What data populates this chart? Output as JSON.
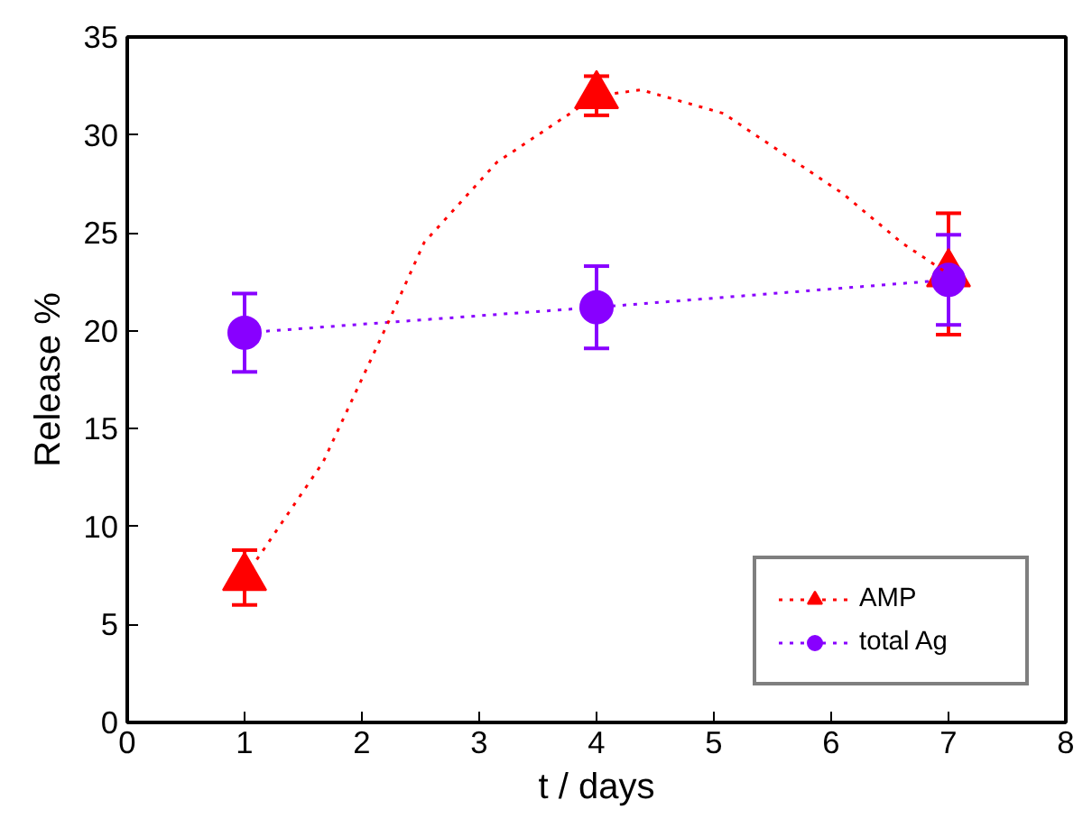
{
  "chart_data": {
    "type": "scatter",
    "xlabel": "t / days",
    "ylabel": "Release %",
    "xlim": [
      0,
      8
    ],
    "xticks": [
      0,
      1,
      2,
      3,
      4,
      5,
      6,
      7,
      8
    ],
    "ylim": [
      0,
      35
    ],
    "yticks": [
      0,
      5,
      10,
      15,
      20,
      25,
      30,
      35
    ],
    "grid": false,
    "legend": "bottom right",
    "series": [
      {
        "name": "AMP",
        "marker": "triangle",
        "color": "#ff0000",
        "x": [
          1,
          4,
          7
        ],
        "values": [
          7.4,
          32.0,
          22.9
        ],
        "errors": [
          1.4,
          1.0,
          3.1
        ]
      },
      {
        "name": "total Ag",
        "type": "line",
        "marker": "circle",
        "line_style": "dotted",
        "color": "#8800ff",
        "x": [
          1,
          4,
          7
        ],
        "values": [
          19.9,
          21.2,
          22.6
        ],
        "errors": [
          2.0,
          2.1,
          2.3
        ]
      },
      {
        "type": "line",
        "marker": "none",
        "line_style": "dotted",
        "color": "#ff0000",
        "x": [
          1,
          1.67,
          2.23,
          2.53,
          3.15,
          4,
          4.38,
          5.08,
          6.1,
          6.6,
          7
        ],
        "values": [
          7.4,
          13.3,
          20.5,
          24.5,
          28.6,
          32.0,
          32.3,
          31.1,
          27.0,
          24.5,
          22.9
        ]
      }
    ]
  }
}
